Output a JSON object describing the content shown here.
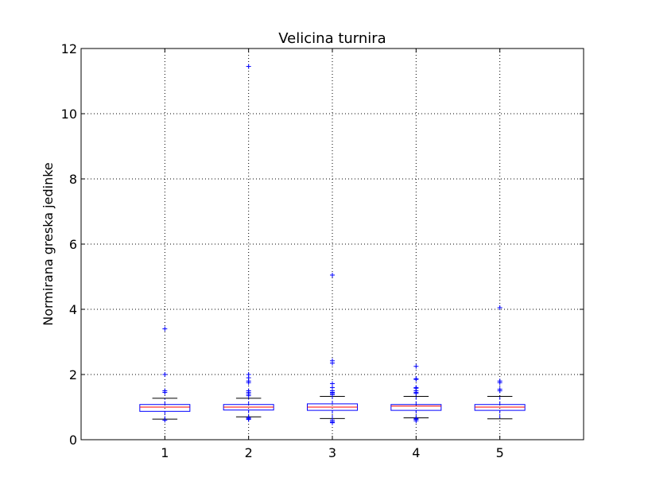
{
  "chart_data": {
    "type": "box",
    "title": "Velicina turnira",
    "xlabel": "",
    "ylabel": "Normirana greska jedinke",
    "ylim": [
      0,
      12
    ],
    "yticks": [
      "0",
      "2",
      "4",
      "6",
      "8",
      "10",
      "12"
    ],
    "categories": [
      "1",
      "2",
      "3",
      "4",
      "5"
    ],
    "grid": true,
    "colors": {
      "box": "#0000ff",
      "median": "#ff0000",
      "whisker": "#000000",
      "flier": "#0000ff",
      "grid": "#000000",
      "axes": "#000000"
    },
    "boxes": [
      {
        "category": "1",
        "whisker_low": 0.63,
        "q1": 0.87,
        "median": 1.0,
        "q3": 1.08,
        "whisker_high": 1.27,
        "fliers": [
          3.4,
          2.0,
          1.5,
          1.45,
          0.6
        ]
      },
      {
        "category": "2",
        "whisker_low": 0.7,
        "q1": 0.91,
        "median": 1.0,
        "q3": 1.08,
        "whisker_high": 1.27,
        "fliers": [
          11.45,
          2.0,
          1.9,
          1.8,
          1.75,
          1.5,
          1.45,
          1.4,
          1.35,
          0.68,
          0.65,
          0.62
        ]
      },
      {
        "category": "3",
        "whisker_low": 0.65,
        "q1": 0.9,
        "median": 1.0,
        "q3": 1.1,
        "whisker_high": 1.33,
        "fliers": [
          5.05,
          2.42,
          2.35,
          1.72,
          1.6,
          1.5,
          1.45,
          1.42,
          1.38,
          0.6,
          0.55,
          0.52
        ]
      },
      {
        "category": "4",
        "whisker_low": 0.67,
        "q1": 0.9,
        "median": 1.03,
        "q3": 1.08,
        "whisker_high": 1.33,
        "fliers": [
          2.25,
          1.87,
          1.85,
          1.6,
          1.58,
          1.5,
          1.45,
          1.42,
          0.65,
          0.62,
          0.58
        ]
      },
      {
        "category": "5",
        "whisker_low": 0.64,
        "q1": 0.9,
        "median": 1.0,
        "q3": 1.08,
        "whisker_high": 1.33,
        "fliers": [
          4.05,
          1.8,
          1.75,
          1.55,
          1.5
        ]
      }
    ]
  }
}
